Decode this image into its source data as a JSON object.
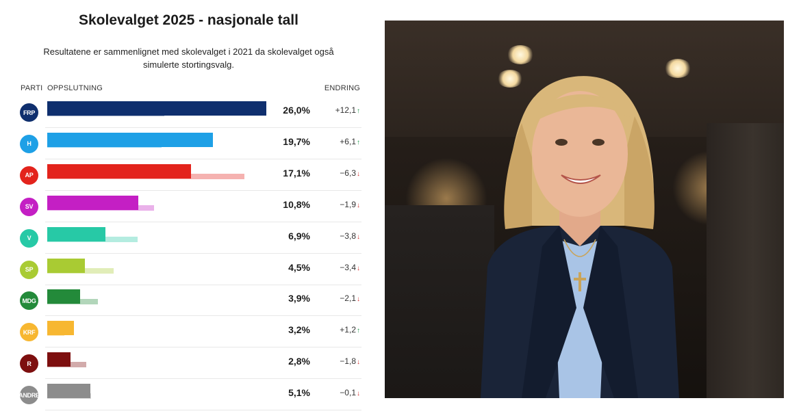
{
  "chart_data": {
    "type": "bar",
    "title": "Skolevalget 2025 - nasjonale tall",
    "subtitle_line1": "Resultatene er sammenlignet med skolevalget i 2021 da skolevalget også",
    "subtitle_line2": "simulerte stortingsvalg.",
    "columns": {
      "party": "PARTI",
      "support": "OPPSLUTNING",
      "change": "ENDRING"
    },
    "xlim": [
      0,
      26
    ],
    "series": [
      {
        "name": "2025",
        "values": [
          26.0,
          19.7,
          17.1,
          10.8,
          6.9,
          4.5,
          3.9,
          3.2,
          2.8,
          5.1
        ]
      },
      {
        "name": "2021",
        "values": [
          13.9,
          13.6,
          23.4,
          12.7,
          10.7,
          7.9,
          6.0,
          2.0,
          4.6,
          5.2
        ]
      }
    ],
    "rows": [
      {
        "party": "FRP",
        "value_label": "26,0%",
        "change_label": "+12,1",
        "direction": "up",
        "color": "#0f2f6e"
      },
      {
        "party": "H",
        "value_label": "19,7%",
        "change_label": "+6,1",
        "direction": "up",
        "color": "#1ea0e6"
      },
      {
        "party": "AP",
        "value_label": "17,1%",
        "change_label": "−6,3",
        "direction": "down",
        "color": "#e3231c"
      },
      {
        "party": "SV",
        "value_label": "10,8%",
        "change_label": "−1,9",
        "direction": "down",
        "color": "#c41fc4"
      },
      {
        "party": "V",
        "value_label": "6,9%",
        "change_label": "−3,8",
        "direction": "down",
        "color": "#27c9a6"
      },
      {
        "party": "SP",
        "value_label": "4,5%",
        "change_label": "−3,4",
        "direction": "down",
        "color": "#a9cb33"
      },
      {
        "party": "MDG",
        "value_label": "3,9%",
        "change_label": "−2,1",
        "direction": "down",
        "color": "#238a3a"
      },
      {
        "party": "KRF",
        "value_label": "3,2%",
        "change_label": "+1,2",
        "direction": "up",
        "color": "#f7b731"
      },
      {
        "party": "R",
        "value_label": "2,8%",
        "change_label": "−1,8",
        "direction": "down",
        "color": "#7d0f0f"
      },
      {
        "party": "ANDRE",
        "value_label": "5,1%",
        "change_label": "−0,1",
        "direction": "down",
        "color": "#8c8c8c"
      }
    ],
    "arrows": {
      "up": "↑",
      "down": "↓"
    },
    "grid": false,
    "legend": "none"
  },
  "photo": {
    "subject": "portrait-photo"
  }
}
